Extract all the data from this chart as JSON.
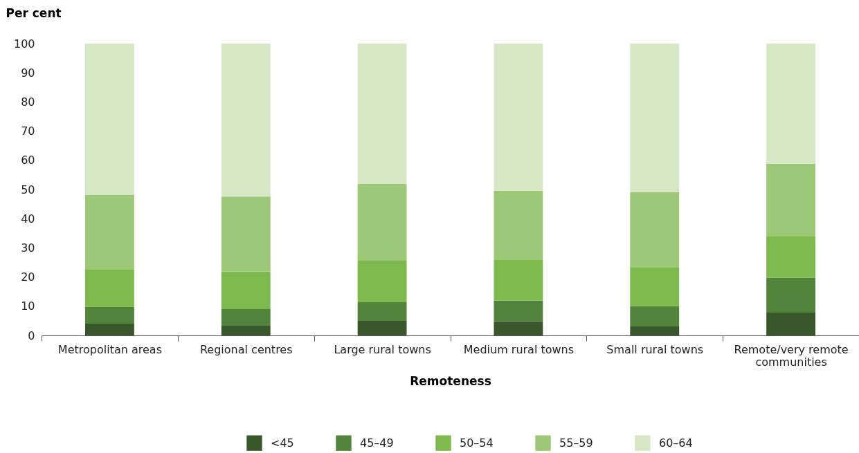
{
  "chart_data": {
    "type": "bar",
    "stacked": true,
    "xlabel": "Remoteness",
    "ylabel": "Per cent",
    "categories": [
      "Metropolitan areas",
      "Regional centres",
      "Large rural towns",
      "Medium rural towns",
      "Small rural towns",
      "Remote/very remote communities"
    ],
    "series": [
      {
        "name": "<45",
        "color": "#38572a",
        "values": [
          4.0,
          3.3,
          5.0,
          4.8,
          3.1,
          7.8
        ]
      },
      {
        "name": "45–49",
        "color": "#52833b",
        "values": [
          5.8,
          5.7,
          6.4,
          7.1,
          6.9,
          11.9
        ]
      },
      {
        "name": "50–54",
        "color": "#7db94d",
        "values": [
          12.7,
          12.9,
          14.2,
          14.1,
          13.2,
          14.2
        ]
      },
      {
        "name": "55–59",
        "color": "#9dc877",
        "values": [
          25.6,
          25.7,
          26.3,
          23.5,
          25.9,
          24.9
        ]
      },
      {
        "name": "60–64",
        "color": "#d6e7c5",
        "values": [
          51.9,
          52.4,
          48.1,
          50.5,
          50.9,
          41.2
        ]
      }
    ],
    "ylim": [
      0,
      100
    ],
    "yticks": [
      0,
      10,
      20,
      30,
      40,
      50,
      60,
      70,
      80,
      90,
      100
    ],
    "grid": false,
    "legend": "bottom"
  }
}
